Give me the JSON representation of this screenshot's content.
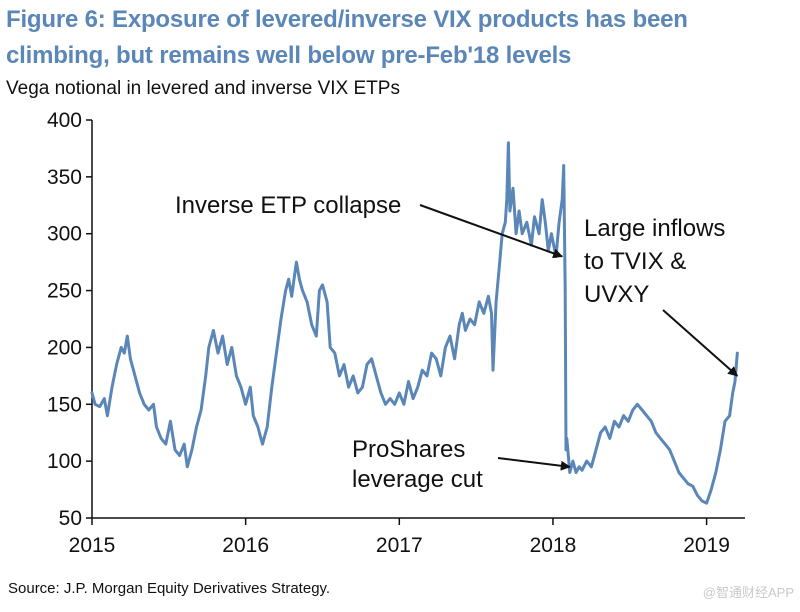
{
  "title_line1": "Figure 6: Exposure of levered/inverse VIX products has been",
  "title_line2": "climbing, but remains well below pre-Feb'18 levels",
  "subtitle": "Vega notional in levered and inverse VIX ETPs",
  "source": "Source: J.P. Morgan Equity Derivatives Strategy.",
  "watermark": "@智通财经APP",
  "colors": {
    "title": "#5b86b8",
    "line": "#5b86b8",
    "text": "#111111"
  },
  "chart_data": {
    "type": "line",
    "title": "Figure 6: Exposure of levered/inverse VIX products has been climbing, but remains well below pre-Feb'18 levels",
    "subtitle": "Vega notional in levered and inverse VIX ETPs",
    "xlabel": "",
    "ylabel": "",
    "xlim": [
      2015.0,
      2019.25
    ],
    "ylim": [
      50,
      400
    ],
    "yticks": [
      50,
      100,
      150,
      200,
      250,
      300,
      350,
      400
    ],
    "ytick_labels": [
      "50",
      "100",
      "150",
      "200",
      "250",
      "300",
      "350",
      "400"
    ],
    "xticks": [
      2015,
      2016,
      2017,
      2018,
      2019
    ],
    "xtick_labels": [
      "2015",
      "2016",
      "2017",
      "2018",
      "2019"
    ],
    "grid": false,
    "series": [
      {
        "name": "Vega notional",
        "points": [
          [
            2015.0,
            160
          ],
          [
            2015.02,
            150
          ],
          [
            2015.05,
            148
          ],
          [
            2015.08,
            155
          ],
          [
            2015.1,
            140
          ],
          [
            2015.13,
            165
          ],
          [
            2015.16,
            185
          ],
          [
            2015.19,
            200
          ],
          [
            2015.21,
            195
          ],
          [
            2015.23,
            210
          ],
          [
            2015.25,
            190
          ],
          [
            2015.28,
            175
          ],
          [
            2015.31,
            160
          ],
          [
            2015.34,
            150
          ],
          [
            2015.37,
            145
          ],
          [
            2015.4,
            150
          ],
          [
            2015.42,
            130
          ],
          [
            2015.45,
            120
          ],
          [
            2015.48,
            115
          ],
          [
            2015.51,
            135
          ],
          [
            2015.54,
            110
          ],
          [
            2015.57,
            105
          ],
          [
            2015.6,
            115
          ],
          [
            2015.62,
            95
          ],
          [
            2015.65,
            110
          ],
          [
            2015.68,
            130
          ],
          [
            2015.71,
            145
          ],
          [
            2015.74,
            175
          ],
          [
            2015.76,
            200
          ],
          [
            2015.79,
            215
          ],
          [
            2015.82,
            195
          ],
          [
            2015.85,
            210
          ],
          [
            2015.88,
            185
          ],
          [
            2015.91,
            200
          ],
          [
            2015.94,
            175
          ],
          [
            2015.97,
            165
          ],
          [
            2016.0,
            150
          ],
          [
            2016.03,
            165
          ],
          [
            2016.05,
            140
          ],
          [
            2016.08,
            130
          ],
          [
            2016.11,
            115
          ],
          [
            2016.14,
            130
          ],
          [
            2016.17,
            165
          ],
          [
            2016.2,
            195
          ],
          [
            2016.23,
            225
          ],
          [
            2016.26,
            250
          ],
          [
            2016.28,
            260
          ],
          [
            2016.3,
            245
          ],
          [
            2016.32,
            265
          ],
          [
            2016.33,
            275
          ],
          [
            2016.35,
            260
          ],
          [
            2016.37,
            250
          ],
          [
            2016.4,
            240
          ],
          [
            2016.43,
            220
          ],
          [
            2016.46,
            210
          ],
          [
            2016.48,
            250
          ],
          [
            2016.5,
            255
          ],
          [
            2016.53,
            240
          ],
          [
            2016.55,
            200
          ],
          [
            2016.58,
            195
          ],
          [
            2016.61,
            175
          ],
          [
            2016.64,
            185
          ],
          [
            2016.67,
            165
          ],
          [
            2016.7,
            175
          ],
          [
            2016.73,
            160
          ],
          [
            2016.76,
            165
          ],
          [
            2016.79,
            185
          ],
          [
            2016.82,
            190
          ],
          [
            2016.85,
            175
          ],
          [
            2016.88,
            160
          ],
          [
            2016.91,
            150
          ],
          [
            2016.94,
            155
          ],
          [
            2016.97,
            150
          ],
          [
            2017.0,
            160
          ],
          [
            2017.03,
            150
          ],
          [
            2017.06,
            170
          ],
          [
            2017.09,
            155
          ],
          [
            2017.12,
            165
          ],
          [
            2017.15,
            180
          ],
          [
            2017.18,
            175
          ],
          [
            2017.21,
            195
          ],
          [
            2017.24,
            190
          ],
          [
            2017.27,
            175
          ],
          [
            2017.3,
            200
          ],
          [
            2017.33,
            210
          ],
          [
            2017.36,
            190
          ],
          [
            2017.39,
            220
          ],
          [
            2017.41,
            230
          ],
          [
            2017.43,
            215
          ],
          [
            2017.46,
            225
          ],
          [
            2017.49,
            220
          ],
          [
            2017.52,
            240
          ],
          [
            2017.55,
            230
          ],
          [
            2017.58,
            245
          ],
          [
            2017.6,
            230
          ],
          [
            2017.61,
            180
          ],
          [
            2017.63,
            240
          ],
          [
            2017.65,
            270
          ],
          [
            2017.67,
            300
          ],
          [
            2017.69,
            310
          ],
          [
            2017.7,
            330
          ],
          [
            2017.71,
            380
          ],
          [
            2017.72,
            320
          ],
          [
            2017.74,
            340
          ],
          [
            2017.76,
            300
          ],
          [
            2017.78,
            320
          ],
          [
            2017.8,
            300
          ],
          [
            2017.83,
            310
          ],
          [
            2017.86,
            290
          ],
          [
            2017.88,
            315
          ],
          [
            2017.91,
            300
          ],
          [
            2017.93,
            330
          ],
          [
            2017.95,
            310
          ],
          [
            2017.97,
            285
          ],
          [
            2017.99,
            300
          ],
          [
            2018.02,
            280
          ],
          [
            2018.04,
            310
          ],
          [
            2018.06,
            330
          ],
          [
            2018.07,
            360
          ],
          [
            2018.08,
            250
          ],
          [
            2018.085,
            110
          ],
          [
            2018.09,
            120
          ],
          [
            2018.11,
            90
          ],
          [
            2018.13,
            100
          ],
          [
            2018.15,
            90
          ],
          [
            2018.17,
            95
          ],
          [
            2018.19,
            92
          ],
          [
            2018.22,
            100
          ],
          [
            2018.25,
            95
          ],
          [
            2018.28,
            110
          ],
          [
            2018.31,
            125
          ],
          [
            2018.34,
            130
          ],
          [
            2018.37,
            120
          ],
          [
            2018.4,
            135
          ],
          [
            2018.43,
            130
          ],
          [
            2018.46,
            140
          ],
          [
            2018.49,
            135
          ],
          [
            2018.52,
            145
          ],
          [
            2018.55,
            150
          ],
          [
            2018.58,
            145
          ],
          [
            2018.61,
            140
          ],
          [
            2018.64,
            135
          ],
          [
            2018.67,
            125
          ],
          [
            2018.7,
            120
          ],
          [
            2018.73,
            115
          ],
          [
            2018.76,
            110
          ],
          [
            2018.79,
            100
          ],
          [
            2018.82,
            90
          ],
          [
            2018.85,
            85
          ],
          [
            2018.88,
            80
          ],
          [
            2018.91,
            78
          ],
          [
            2018.94,
            70
          ],
          [
            2018.97,
            65
          ],
          [
            2019.0,
            63
          ],
          [
            2019.03,
            75
          ],
          [
            2019.06,
            90
          ],
          [
            2019.09,
            110
          ],
          [
            2019.12,
            135
          ],
          [
            2019.15,
            140
          ],
          [
            2019.17,
            160
          ],
          [
            2019.185,
            170
          ],
          [
            2019.2,
            195
          ]
        ]
      }
    ],
    "annotations": [
      {
        "id": "inverse",
        "lines": [
          "Inverse ETP collapse"
        ],
        "arrow_to": [
          2018.06,
          280
        ]
      },
      {
        "id": "proshares",
        "lines": [
          "ProShares",
          "leverage cut"
        ],
        "arrow_to": [
          2018.11,
          95
        ]
      },
      {
        "id": "inflows",
        "lines": [
          "Large inflows",
          "to TVIX &",
          "UVXY"
        ],
        "arrow_to": [
          2019.2,
          175
        ]
      }
    ]
  }
}
